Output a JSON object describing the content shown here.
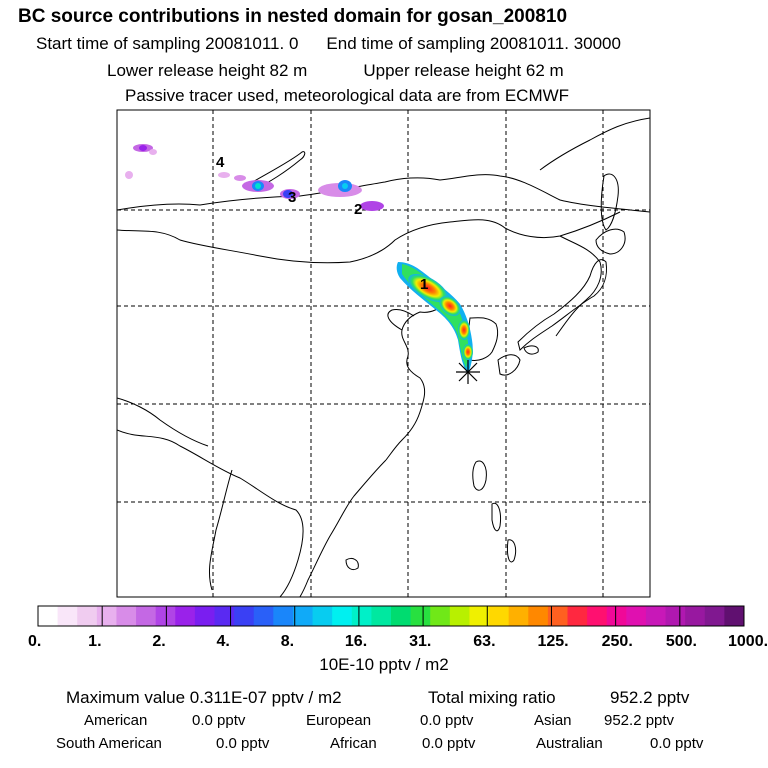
{
  "header": {
    "title": "BC  source contributions in nested domain for gosan_200810",
    "start_label": "Start time of sampling 20081011.     0",
    "end_label": "End time of sampling 20081011. 30000",
    "lower_label": "Lower release height   82 m",
    "upper_label": "Upper release height   62 m",
    "note": "Passive tracer used, meteorological data are from ECMWF"
  },
  "chart_data": {
    "type": "heatmap",
    "title": "BC  source contributions in nested domain for gosan_200810",
    "map_labels": [
      "1",
      "2",
      "3",
      "4"
    ],
    "colorbar": {
      "ticks": [
        "0.",
        "1.",
        "2.",
        "4.",
        "8.",
        "16.",
        "31.",
        "63.",
        "125.",
        "250.",
        "500.",
        "1000."
      ],
      "unit": "10E-10 pptv / m2",
      "colors": [
        "#ffffff",
        "#f9e6f9",
        "#f0ccf0",
        "#e8b0ee",
        "#d88ce8",
        "#c468e4",
        "#b044e6",
        "#9a22ea",
        "#7a1ef0",
        "#5a2af2",
        "#3a40f4",
        "#2a60f8",
        "#1a86fa",
        "#10aaf8",
        "#08ccf0",
        "#00f0f0",
        "#00f0c8",
        "#00e8a0",
        "#00dc70",
        "#28e040",
        "#70e818",
        "#b8f000",
        "#f0f000",
        "#ffd800",
        "#ffb000",
        "#ff8800",
        "#ff6020",
        "#ff2840",
        "#ff1070",
        "#f00898",
        "#e010b0",
        "#c818b8",
        "#b018b0",
        "#9818a0",
        "#801890",
        "#601070"
      ]
    }
  },
  "footer": {
    "max_label": "Maximum value  0.311E-07 pptv / m2",
    "total_label": "Total mixing ratio",
    "total_value": "952.2 pptv",
    "regions": [
      {
        "name": "American",
        "value": "0.0 pptv"
      },
      {
        "name": "European",
        "value": "0.0 pptv"
      },
      {
        "name": "Asian",
        "value": "952.2 pptv"
      },
      {
        "name": "South American",
        "value": "0.0 pptv"
      },
      {
        "name": "African",
        "value": "0.0 pptv"
      },
      {
        "name": "Australian",
        "value": "0.0 pptv"
      }
    ]
  }
}
